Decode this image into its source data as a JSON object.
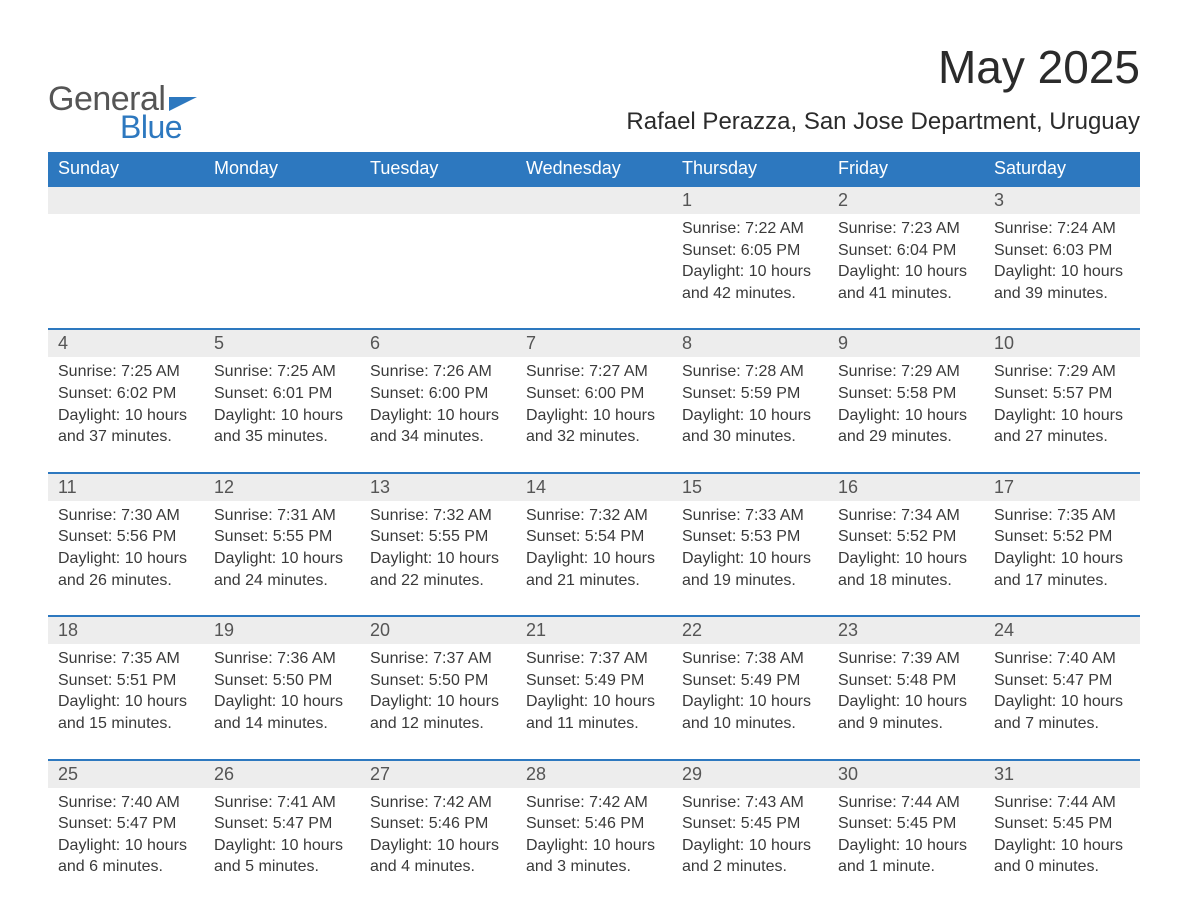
{
  "logo": {
    "text1": "General",
    "text2": "Blue",
    "color_primary": "#2d78bf",
    "color_text": "#555555"
  },
  "title": "May 2025",
  "location": "Rafael Perazza, San Jose Department, Uruguay",
  "colors": {
    "header_bg": "#2d78bf",
    "header_text": "#ffffff",
    "daynum_bg": "#ededed",
    "body_text": "#3a3a3a",
    "page_bg": "#ffffff",
    "row_border": "#2d78bf"
  },
  "fonts": {
    "title_size": 46,
    "location_size": 24,
    "dayheader_size": 18,
    "daynum_size": 18,
    "details_size": 16
  },
  "day_headers": [
    "Sunday",
    "Monday",
    "Tuesday",
    "Wednesday",
    "Thursday",
    "Friday",
    "Saturday"
  ],
  "weeks": [
    [
      null,
      null,
      null,
      null,
      {
        "day": "1",
        "sunrise": "Sunrise: 7:22 AM",
        "sunset": "Sunset: 6:05 PM",
        "daylight1": "Daylight: 10 hours",
        "daylight2": "and 42 minutes."
      },
      {
        "day": "2",
        "sunrise": "Sunrise: 7:23 AM",
        "sunset": "Sunset: 6:04 PM",
        "daylight1": "Daylight: 10 hours",
        "daylight2": "and 41 minutes."
      },
      {
        "day": "3",
        "sunrise": "Sunrise: 7:24 AM",
        "sunset": "Sunset: 6:03 PM",
        "daylight1": "Daylight: 10 hours",
        "daylight2": "and 39 minutes."
      }
    ],
    [
      {
        "day": "4",
        "sunrise": "Sunrise: 7:25 AM",
        "sunset": "Sunset: 6:02 PM",
        "daylight1": "Daylight: 10 hours",
        "daylight2": "and 37 minutes."
      },
      {
        "day": "5",
        "sunrise": "Sunrise: 7:25 AM",
        "sunset": "Sunset: 6:01 PM",
        "daylight1": "Daylight: 10 hours",
        "daylight2": "and 35 minutes."
      },
      {
        "day": "6",
        "sunrise": "Sunrise: 7:26 AM",
        "sunset": "Sunset: 6:00 PM",
        "daylight1": "Daylight: 10 hours",
        "daylight2": "and 34 minutes."
      },
      {
        "day": "7",
        "sunrise": "Sunrise: 7:27 AM",
        "sunset": "Sunset: 6:00 PM",
        "daylight1": "Daylight: 10 hours",
        "daylight2": "and 32 minutes."
      },
      {
        "day": "8",
        "sunrise": "Sunrise: 7:28 AM",
        "sunset": "Sunset: 5:59 PM",
        "daylight1": "Daylight: 10 hours",
        "daylight2": "and 30 minutes."
      },
      {
        "day": "9",
        "sunrise": "Sunrise: 7:29 AM",
        "sunset": "Sunset: 5:58 PM",
        "daylight1": "Daylight: 10 hours",
        "daylight2": "and 29 minutes."
      },
      {
        "day": "10",
        "sunrise": "Sunrise: 7:29 AM",
        "sunset": "Sunset: 5:57 PM",
        "daylight1": "Daylight: 10 hours",
        "daylight2": "and 27 minutes."
      }
    ],
    [
      {
        "day": "11",
        "sunrise": "Sunrise: 7:30 AM",
        "sunset": "Sunset: 5:56 PM",
        "daylight1": "Daylight: 10 hours",
        "daylight2": "and 26 minutes."
      },
      {
        "day": "12",
        "sunrise": "Sunrise: 7:31 AM",
        "sunset": "Sunset: 5:55 PM",
        "daylight1": "Daylight: 10 hours",
        "daylight2": "and 24 minutes."
      },
      {
        "day": "13",
        "sunrise": "Sunrise: 7:32 AM",
        "sunset": "Sunset: 5:55 PM",
        "daylight1": "Daylight: 10 hours",
        "daylight2": "and 22 minutes."
      },
      {
        "day": "14",
        "sunrise": "Sunrise: 7:32 AM",
        "sunset": "Sunset: 5:54 PM",
        "daylight1": "Daylight: 10 hours",
        "daylight2": "and 21 minutes."
      },
      {
        "day": "15",
        "sunrise": "Sunrise: 7:33 AM",
        "sunset": "Sunset: 5:53 PM",
        "daylight1": "Daylight: 10 hours",
        "daylight2": "and 19 minutes."
      },
      {
        "day": "16",
        "sunrise": "Sunrise: 7:34 AM",
        "sunset": "Sunset: 5:52 PM",
        "daylight1": "Daylight: 10 hours",
        "daylight2": "and 18 minutes."
      },
      {
        "day": "17",
        "sunrise": "Sunrise: 7:35 AM",
        "sunset": "Sunset: 5:52 PM",
        "daylight1": "Daylight: 10 hours",
        "daylight2": "and 17 minutes."
      }
    ],
    [
      {
        "day": "18",
        "sunrise": "Sunrise: 7:35 AM",
        "sunset": "Sunset: 5:51 PM",
        "daylight1": "Daylight: 10 hours",
        "daylight2": "and 15 minutes."
      },
      {
        "day": "19",
        "sunrise": "Sunrise: 7:36 AM",
        "sunset": "Sunset: 5:50 PM",
        "daylight1": "Daylight: 10 hours",
        "daylight2": "and 14 minutes."
      },
      {
        "day": "20",
        "sunrise": "Sunrise: 7:37 AM",
        "sunset": "Sunset: 5:50 PM",
        "daylight1": "Daylight: 10 hours",
        "daylight2": "and 12 minutes."
      },
      {
        "day": "21",
        "sunrise": "Sunrise: 7:37 AM",
        "sunset": "Sunset: 5:49 PM",
        "daylight1": "Daylight: 10 hours",
        "daylight2": "and 11 minutes."
      },
      {
        "day": "22",
        "sunrise": "Sunrise: 7:38 AM",
        "sunset": "Sunset: 5:49 PM",
        "daylight1": "Daylight: 10 hours",
        "daylight2": "and 10 minutes."
      },
      {
        "day": "23",
        "sunrise": "Sunrise: 7:39 AM",
        "sunset": "Sunset: 5:48 PM",
        "daylight1": "Daylight: 10 hours",
        "daylight2": "and 9 minutes."
      },
      {
        "day": "24",
        "sunrise": "Sunrise: 7:40 AM",
        "sunset": "Sunset: 5:47 PM",
        "daylight1": "Daylight: 10 hours",
        "daylight2": "and 7 minutes."
      }
    ],
    [
      {
        "day": "25",
        "sunrise": "Sunrise: 7:40 AM",
        "sunset": "Sunset: 5:47 PM",
        "daylight1": "Daylight: 10 hours",
        "daylight2": "and 6 minutes."
      },
      {
        "day": "26",
        "sunrise": "Sunrise: 7:41 AM",
        "sunset": "Sunset: 5:47 PM",
        "daylight1": "Daylight: 10 hours",
        "daylight2": "and 5 minutes."
      },
      {
        "day": "27",
        "sunrise": "Sunrise: 7:42 AM",
        "sunset": "Sunset: 5:46 PM",
        "daylight1": "Daylight: 10 hours",
        "daylight2": "and 4 minutes."
      },
      {
        "day": "28",
        "sunrise": "Sunrise: 7:42 AM",
        "sunset": "Sunset: 5:46 PM",
        "daylight1": "Daylight: 10 hours",
        "daylight2": "and 3 minutes."
      },
      {
        "day": "29",
        "sunrise": "Sunrise: 7:43 AM",
        "sunset": "Sunset: 5:45 PM",
        "daylight1": "Daylight: 10 hours",
        "daylight2": "and 2 minutes."
      },
      {
        "day": "30",
        "sunrise": "Sunrise: 7:44 AM",
        "sunset": "Sunset: 5:45 PM",
        "daylight1": "Daylight: 10 hours",
        "daylight2": "and 1 minute."
      },
      {
        "day": "31",
        "sunrise": "Sunrise: 7:44 AM",
        "sunset": "Sunset: 5:45 PM",
        "daylight1": "Daylight: 10 hours",
        "daylight2": "and 0 minutes."
      }
    ]
  ]
}
